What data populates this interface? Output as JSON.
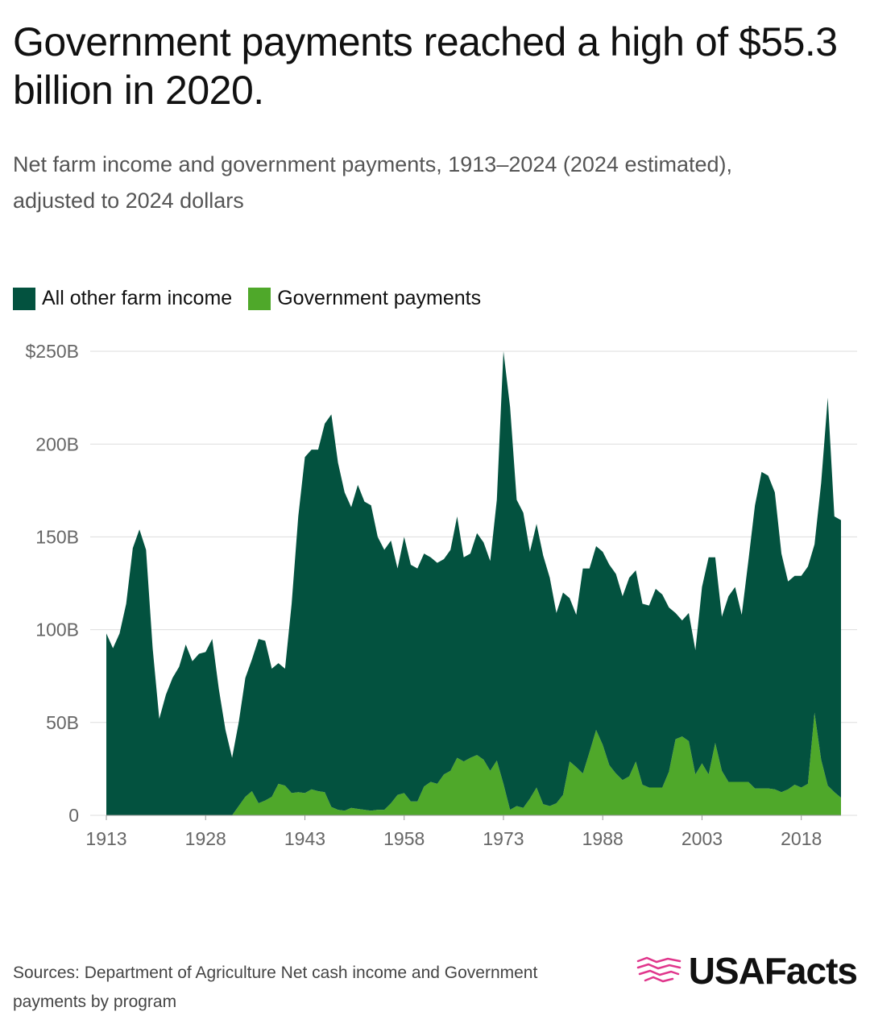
{
  "chart_data": {
    "type": "stacked_area",
    "title": "Government payments reached a high of $55.3 billion in 2020.",
    "subtitle": "Net farm income and government payments, 1913–2024 (2024 estimated), adjusted to 2024 dollars",
    "x": [
      1913,
      1914,
      1915,
      1916,
      1917,
      1918,
      1919,
      1920,
      1921,
      1922,
      1923,
      1924,
      1925,
      1926,
      1927,
      1928,
      1929,
      1930,
      1931,
      1932,
      1933,
      1934,
      1935,
      1936,
      1937,
      1938,
      1939,
      1940,
      1941,
      1942,
      1943,
      1944,
      1945,
      1946,
      1947,
      1948,
      1949,
      1950,
      1951,
      1952,
      1953,
      1954,
      1955,
      1956,
      1957,
      1958,
      1959,
      1960,
      1961,
      1962,
      1963,
      1964,
      1965,
      1966,
      1967,
      1968,
      1969,
      1970,
      1971,
      1972,
      1973,
      1974,
      1975,
      1976,
      1977,
      1978,
      1979,
      1980,
      1981,
      1982,
      1983,
      1984,
      1985,
      1986,
      1987,
      1988,
      1989,
      1990,
      1991,
      1992,
      1993,
      1994,
      1995,
      1996,
      1997,
      1998,
      1999,
      2000,
      2001,
      2002,
      2003,
      2004,
      2005,
      2006,
      2007,
      2008,
      2009,
      2010,
      2011,
      2012,
      2013,
      2014,
      2015,
      2016,
      2017,
      2018,
      2019,
      2020,
      2021,
      2022,
      2023,
      2024
    ],
    "series": [
      {
        "name": "All other farm income",
        "color": "#03523f",
        "values": [
          98,
          90,
          98,
          114,
          144,
          154,
          143,
          90,
          52,
          65,
          74,
          80,
          92,
          83,
          87,
          88,
          95,
          68,
          46,
          31,
          45,
          64,
          71,
          88.5,
          86,
          69,
          65,
          63,
          102,
          148.5,
          181,
          183,
          184,
          198.5,
          211.5,
          187,
          171.5,
          162,
          174.5,
          166,
          164.5,
          147,
          140,
          141.5,
          122,
          138,
          127.5,
          125.5,
          125.5,
          121,
          119,
          116,
          119,
          130,
          110,
          110,
          119.5,
          117,
          113,
          140.5,
          233,
          217,
          165,
          159,
          133,
          142,
          134,
          123,
          102.5,
          109,
          88,
          82,
          110.5,
          99,
          99,
          104,
          108,
          107.5,
          99,
          107,
          103,
          97.5,
          98,
          107,
          104,
          88.5,
          68,
          62.5,
          69,
          67,
          95,
          117,
          100,
          83,
          100,
          105,
          90,
          119,
          152.5,
          170.5,
          168.5,
          160,
          128.5,
          112,
          112.5,
          114,
          117,
          90.7,
          149,
          209,
          148.5,
          149.5
        ]
      },
      {
        "name": "Government payments",
        "color": "#4fa82a",
        "values": [
          0,
          0,
          0,
          0,
          0,
          0,
          0,
          0,
          0,
          0,
          0,
          0,
          0,
          0,
          0,
          0,
          0,
          0,
          0,
          0,
          5,
          10,
          13,
          6.5,
          8,
          10,
          17,
          16,
          12,
          12.5,
          12,
          14,
          13,
          12.5,
          4.5,
          3,
          2.5,
          4,
          3.5,
          3,
          2.5,
          3,
          3,
          6.5,
          11,
          12,
          7.5,
          7.5,
          15.5,
          18,
          17,
          22,
          24,
          31,
          29,
          31,
          32.5,
          30,
          24,
          29.5,
          17,
          3,
          5,
          4,
          9,
          15,
          6,
          5,
          6.5,
          11,
          29,
          26,
          22.5,
          34,
          46,
          38,
          27,
          22.5,
          19,
          21,
          29,
          16.5,
          15,
          15,
          15,
          23.5,
          41,
          42.5,
          40,
          22,
          28,
          22,
          39,
          24,
          18,
          18,
          18,
          18,
          14.5,
          14.5,
          14.5,
          14,
          12.5,
          14,
          16.5,
          15,
          17,
          55.3,
          30,
          16,
          12.5,
          9.5
        ]
      }
    ],
    "stack_order": [
      1,
      0
    ],
    "xlim": [
      1913,
      2024
    ],
    "xticks": [
      1913,
      1928,
      1943,
      1958,
      1973,
      1988,
      2003,
      2018
    ],
    "ylim": [
      0,
      250
    ],
    "yticks": [
      0,
      {
        "value": 50,
        "label": "50B"
      },
      {
        "value": 100,
        "label": "100B"
      },
      {
        "value": 150,
        "label": "150B"
      },
      {
        "value": 200,
        "label": "200B"
      },
      {
        "value": 250,
        "label": "$250B"
      }
    ],
    "grid": true,
    "sources": "Sources: Department of Agriculture Net cash income and Government payments by program",
    "brand": "USAFacts"
  }
}
